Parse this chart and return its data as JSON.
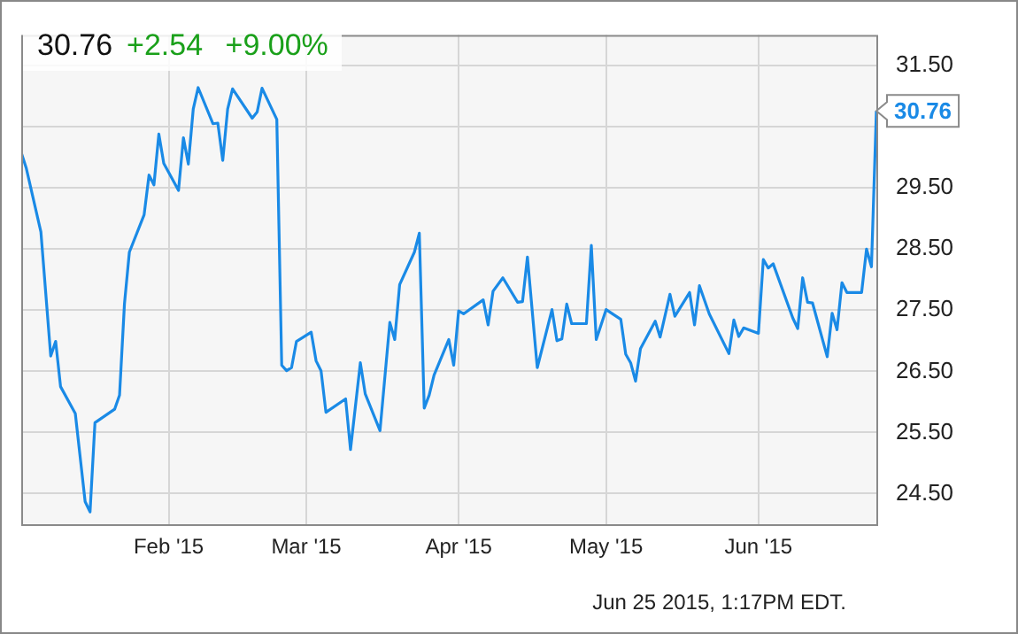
{
  "chart_data": {
    "type": "line",
    "title": "30.76",
    "subtitle": "+2.54 +9.00%",
    "annotations": [
      {
        "text": "30.76",
        "x": "2015-06-25",
        "y": 30.76
      },
      "Jun 25 2015, 1:17PM EDT."
    ],
    "x": [
      "2015-01-02",
      "2015-01-03",
      "2015-01-06",
      "2015-01-08",
      "2015-01-09",
      "2015-01-10",
      "2015-01-13",
      "2015-01-15",
      "2015-01-16",
      "2015-01-17",
      "2015-01-21",
      "2015-01-22",
      "2015-01-23",
      "2015-01-24",
      "2015-01-27",
      "2015-01-28",
      "2015-01-29",
      "2015-01-30",
      "2015-01-31",
      "2015-02-03",
      "2015-02-04",
      "2015-02-05",
      "2015-02-06",
      "2015-02-07",
      "2015-02-10",
      "2015-02-11",
      "2015-02-12",
      "2015-02-13",
      "2015-02-14",
      "2015-02-18",
      "2015-02-19",
      "2015-02-20",
      "2015-02-23",
      "2015-02-24",
      "2015-02-25",
      "2015-02-26",
      "2015-02-27",
      "2015-03-02",
      "2015-03-03",
      "2015-03-04",
      "2015-03-05",
      "2015-03-09",
      "2015-03-10",
      "2015-03-12",
      "2015-03-13",
      "2015-03-16",
      "2015-03-18",
      "2015-03-19",
      "2015-03-20",
      "2015-03-23",
      "2015-03-24",
      "2015-03-25",
      "2015-03-26",
      "2015-03-27",
      "2015-03-30",
      "2015-03-31",
      "2015-04-01",
      "2015-04-02",
      "2015-04-06",
      "2015-04-07",
      "2015-04-08",
      "2015-04-10",
      "2015-04-13",
      "2015-04-14",
      "2015-04-15",
      "2015-04-17",
      "2015-04-20",
      "2015-04-21",
      "2015-04-22",
      "2015-04-23",
      "2015-04-24",
      "2015-04-27",
      "2015-04-28",
      "2015-04-29",
      "2015-05-01",
      "2015-05-04",
      "2015-05-05",
      "2015-05-06",
      "2015-05-07",
      "2015-05-08",
      "2015-05-11",
      "2015-05-12",
      "2015-05-14",
      "2015-05-15",
      "2015-05-18",
      "2015-05-19",
      "2015-05-20",
      "2015-05-22",
      "2015-05-26",
      "2015-05-27",
      "2015-05-28",
      "2015-05-29",
      "2015-06-01",
      "2015-06-02",
      "2015-06-03",
      "2015-06-04",
      "2015-06-08",
      "2015-06-09",
      "2015-06-10",
      "2015-06-11",
      "2015-06-12",
      "2015-06-15",
      "2015-06-16",
      "2015-06-17",
      "2015-06-18",
      "2015-06-19",
      "2015-06-22",
      "2015-06-23",
      "2015-06-24",
      "2015-06-25"
    ],
    "series": [
      {
        "color": "#1a8ae6",
        "values": [
          30.08,
          29.83,
          28.78,
          26.75,
          26.99,
          26.25,
          25.81,
          24.37,
          24.2,
          25.66,
          25.88,
          26.11,
          27.6,
          28.45,
          29.06,
          29.71,
          29.55,
          30.38,
          29.9,
          29.46,
          30.32,
          29.89,
          30.79,
          31.14,
          30.55,
          30.56,
          29.95,
          30.79,
          31.12,
          30.64,
          30.74,
          31.13,
          30.62,
          26.6,
          26.51,
          26.56,
          26.99,
          27.14,
          26.67,
          26.51,
          25.83,
          26.05,
          25.22,
          26.64,
          26.13,
          25.53,
          27.3,
          27.02,
          27.92,
          28.45,
          28.76,
          25.9,
          26.11,
          26.44,
          27.02,
          26.6,
          27.49,
          27.44,
          27.67,
          27.26,
          27.81,
          28.03,
          27.63,
          27.64,
          28.37,
          26.56,
          27.51,
          27.0,
          27.03,
          27.6,
          27.28,
          27.28,
          28.56,
          27.02,
          27.51,
          27.35,
          26.78,
          26.64,
          26.34,
          26.87,
          27.32,
          27.06,
          27.76,
          27.4,
          27.79,
          27.26,
          27.9,
          27.44,
          26.79,
          27.34,
          27.07,
          27.21,
          27.12,
          28.33,
          28.19,
          28.26,
          27.37,
          27.2,
          28.03,
          27.63,
          27.62,
          26.74,
          27.45,
          27.18,
          27.95,
          27.79,
          27.79,
          28.5,
          28.21,
          30.76
        ]
      }
    ],
    "xlim": [
      "2015-01-02",
      "2015-06-25"
    ],
    "xticks": [
      {
        "value": "2015-02-01",
        "label": "Feb '15"
      },
      {
        "value": "2015-03-01",
        "label": "Mar '15"
      },
      {
        "value": "2015-04-01",
        "label": "Apr '15"
      },
      {
        "value": "2015-05-01",
        "label": "May '15"
      },
      {
        "value": "2015-06-01",
        "label": "Jun '15"
      }
    ],
    "ylim": [
      24,
      32
    ],
    "yticks": [
      {
        "value": 24.5,
        "label": "24.50"
      },
      {
        "value": 25.5,
        "label": "25.50"
      },
      {
        "value": 26.5,
        "label": "26.50"
      },
      {
        "value": 27.5,
        "label": "27.50"
      },
      {
        "value": 28.5,
        "label": "28.50"
      },
      {
        "value": 29.5,
        "label": "29.50"
      },
      {
        "value": 30.5,
        "label": null
      },
      {
        "value": 31.5,
        "label": "31.50"
      }
    ],
    "grid": true,
    "legend": false,
    "marker": "none",
    "line_style": "solid"
  }
}
